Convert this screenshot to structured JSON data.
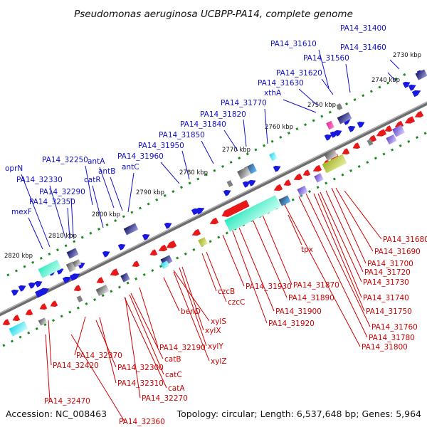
{
  "title": "Pseudomonas aeruginosa UCBPP-PA14, complete genome",
  "accession": "Accession: NC_008463",
  "summary": "Topology: circular; Length: 6,537,648 bp; Genes: 5,964",
  "colors": {
    "forward_labels": "#1010c8",
    "reverse_labels": "#d00000",
    "forward_genes": "#1818e0",
    "reverse_genes": "#e81818",
    "backbone": "#808080",
    "tick_marks": "#208020"
  },
  "ticks": [
    "2730 kbp",
    "2740 kbp",
    "2750 kbp",
    "2760 kbp",
    "2770 kbp",
    "2780 kbp",
    "2790 kbp",
    "2800 kbp",
    "2810 kbp",
    "2820 kbp"
  ],
  "top_labels": [
    "PA14_31400",
    "PA14_31460",
    "PA14_31610",
    "PA14_31560",
    "PA14_31620",
    "PA14_31630",
    "xthA",
    "PA14_31770",
    "PA14_31820",
    "PA14_31840",
    "PA14_31850",
    "PA14_31950",
    "PA14_31960",
    "PA14_32250",
    "antA",
    "antB",
    "antC",
    "catR",
    "PA14_32330",
    "oprN",
    "PA14_32290",
    "PA14_32350",
    "mexF"
  ],
  "bottom_labels": [
    "PA14_31680",
    "PA14_31690",
    "PA14_31700",
    "tpx",
    "PA14_31720",
    "PA14_31730",
    "PA14_31740",
    "PA14_31750",
    "PA14_31760",
    "PA14_31780",
    "PA14_31800",
    "PA14_31870",
    "PA14_31890",
    "PA14_31930",
    "PA14_31900",
    "PA14_31920",
    "czcB",
    "czcC",
    "xylS",
    "xylX",
    "xylY",
    "xylZ",
    "benD",
    "PA14_32190",
    "catB",
    "catC",
    "catA",
    "PA14_32270",
    "PA14_32300",
    "PA14_32310",
    "PA14_32370",
    "PA14_32420",
    "PA14_32470",
    "PA14_32360"
  ]
}
